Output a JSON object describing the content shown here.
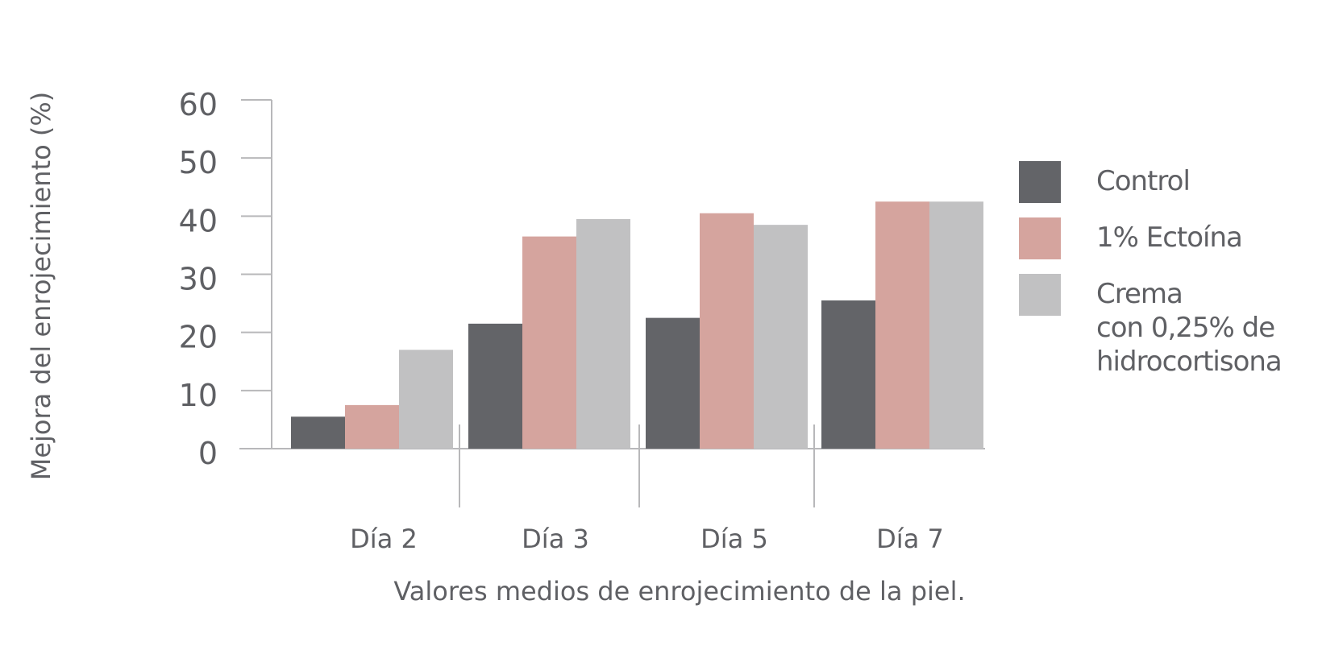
{
  "chart_data": {
    "type": "bar",
    "title": "",
    "xlabel": "Valores medios de enrojecimiento de la piel.",
    "ylabel": "Mejora del enrojecimiento (%)",
    "ylim": [
      0,
      60
    ],
    "yticks": [
      "0",
      "10",
      "20",
      "30",
      "40",
      "50",
      "60"
    ],
    "categories": [
      "Día 2",
      "Día 3",
      "Día 5",
      "Día 7"
    ],
    "series": [
      {
        "name": "Control",
        "color": "#636468",
        "values": [
          5.5,
          21.5,
          22.5,
          25.5
        ]
      },
      {
        "name": "1% Ectoína",
        "color": "#d5a49e",
        "values": [
          7.5,
          36.5,
          40.5,
          42.5
        ]
      },
      {
        "name": "Crema con 0,25% de hidrocortisona",
        "color": "#c1c1c2",
        "values": [
          17,
          39.5,
          38.5,
          42.5
        ]
      }
    ],
    "legend": {
      "position": "right",
      "entries": [
        {
          "lines": [
            "Control"
          ]
        },
        {
          "lines": [
            "1% Ectoína"
          ]
        },
        {
          "lines": [
            "Crema",
            "con 0,25% de",
            "hidrocortisona"
          ]
        }
      ]
    },
    "grid": false
  }
}
